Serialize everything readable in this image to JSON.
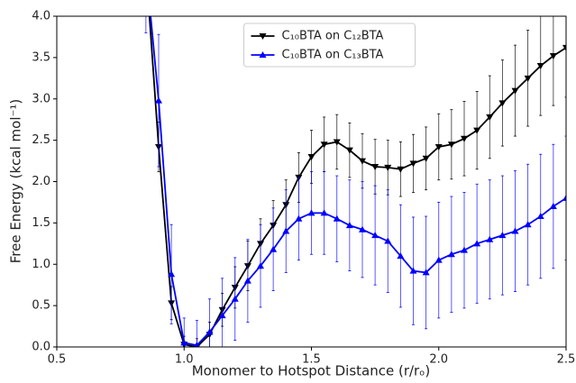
{
  "chart_data": {
    "type": "line",
    "xlabel": "Monomer to Hotspot Distance (r/rₒ)",
    "ylabel": "Free Energy (kcal mol⁻¹)",
    "x": [
      0.85,
      0.9,
      0.95,
      1.0,
      1.05,
      1.1,
      1.15,
      1.2,
      1.25,
      1.3,
      1.35,
      1.4,
      1.45,
      1.5,
      1.55,
      1.6,
      1.65,
      1.7,
      1.75,
      1.8,
      1.85,
      1.9,
      1.95,
      2.0,
      2.05,
      2.1,
      2.15,
      2.2,
      2.25,
      2.3,
      2.35,
      2.4,
      2.45,
      2.5
    ],
    "series": [
      {
        "name": "C₁₀BTA on C₁₂BTA",
        "color": "#000000",
        "marker": "down",
        "values": [
          4.6,
          2.42,
          0.53,
          0.03,
          0.0,
          0.15,
          0.45,
          0.72,
          0.98,
          1.25,
          1.47,
          1.72,
          2.05,
          2.3,
          2.45,
          2.48,
          2.38,
          2.25,
          2.18,
          2.17,
          2.15,
          2.22,
          2.28,
          2.42,
          2.45,
          2.52,
          2.62,
          2.78,
          2.95,
          3.1,
          3.25,
          3.4,
          3.52,
          3.62
        ],
        "errors": [
          0.3,
          0.3,
          0.2,
          0.1,
          0.1,
          0.15,
          0.2,
          0.25,
          0.3,
          0.3,
          0.3,
          0.3,
          0.3,
          0.32,
          0.33,
          0.33,
          0.33,
          0.33,
          0.33,
          0.33,
          0.33,
          0.35,
          0.38,
          0.4,
          0.42,
          0.45,
          0.47,
          0.5,
          0.52,
          0.55,
          0.58,
          0.6,
          0.6,
          0.6
        ]
      },
      {
        "name": "C₁₀BTA on C₁₃BTA",
        "color": "#0000ff",
        "marker": "up",
        "values": [
          4.6,
          2.98,
          0.88,
          0.05,
          0.02,
          0.18,
          0.38,
          0.58,
          0.8,
          0.98,
          1.18,
          1.4,
          1.55,
          1.62,
          1.62,
          1.55,
          1.47,
          1.42,
          1.35,
          1.28,
          1.1,
          0.92,
          0.9,
          1.05,
          1.12,
          1.17,
          1.25,
          1.3,
          1.35,
          1.4,
          1.48,
          1.58,
          1.7,
          1.8
        ],
        "errors": [
          0.8,
          0.8,
          0.6,
          0.3,
          0.3,
          0.4,
          0.45,
          0.5,
          0.5,
          0.5,
          0.5,
          0.5,
          0.5,
          0.5,
          0.5,
          0.52,
          0.55,
          0.58,
          0.6,
          0.62,
          0.62,
          0.65,
          0.68,
          0.7,
          0.7,
          0.7,
          0.72,
          0.72,
          0.72,
          0.73,
          0.73,
          0.75,
          0.75,
          0.75
        ]
      }
    ],
    "xlim": [
      0.5,
      2.5
    ],
    "xticks": [
      0.5,
      {
        "value": 1.0,
        "label": "1.0"
      },
      1.5,
      {
        "value": 2.0,
        "label": "2.0"
      },
      2.5
    ],
    "ylim": [
      0,
      4
    ],
    "yticks": [
      {
        "value": 0,
        "label": "0.0"
      },
      0.5,
      {
        "value": 1,
        "label": "1.0"
      },
      1.5,
      {
        "value": 2,
        "label": "2.0"
      },
      2.5,
      {
        "value": 3,
        "label": "3.0"
      },
      3.5,
      {
        "value": 4,
        "label": "4.0"
      }
    ],
    "legend": "upper center"
  }
}
